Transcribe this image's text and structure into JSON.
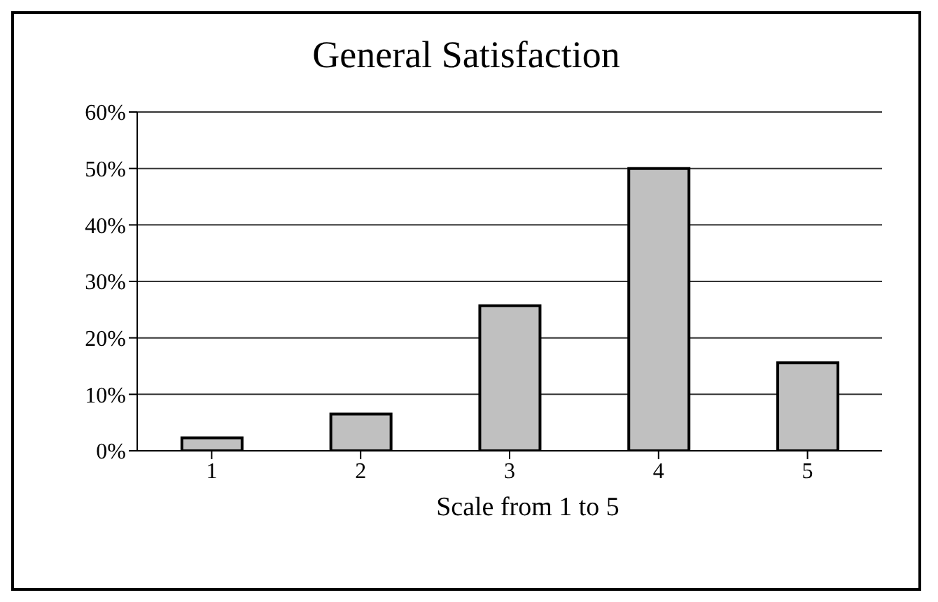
{
  "chart_data": {
    "type": "bar",
    "title": "General Satisfaction",
    "xlabel": "Scale from 1 to 5",
    "categories": [
      "1",
      "2",
      "3",
      "4",
      "5"
    ],
    "values": [
      2.3,
      6.5,
      25.7,
      50,
      15.6
    ],
    "color": "#c0c0c0",
    "ylim": [
      0,
      60
    ],
    "yticks": [
      {
        "value": 0,
        "label": "0%"
      },
      {
        "value": 10,
        "label": "10%"
      },
      {
        "value": 20,
        "label": "20%"
      },
      {
        "value": 30,
        "label": "30%"
      },
      {
        "value": 40,
        "label": "40%"
      },
      {
        "value": 50,
        "label": "50%"
      },
      {
        "value": 60,
        "label": "60%"
      }
    ],
    "grid": "y"
  }
}
